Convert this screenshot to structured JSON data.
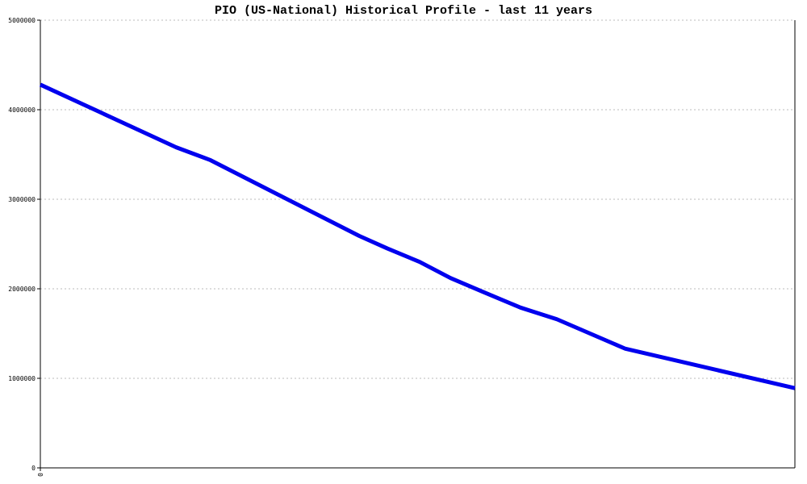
{
  "chart_data": {
    "type": "line",
    "title": "PIO (US-National) Historical Profile - last 11 years",
    "x": [
      0,
      1.98,
      2.47,
      4.65,
      5.06,
      5.53,
      5.98,
      6.47,
      7.0,
      7.53,
      8.53,
      11
    ],
    "series": [
      {
        "name": "PIO",
        "color": "#0000ee",
        "values": [
          4280000,
          3580000,
          3440000,
          2590000,
          2450000,
          2300000,
          2120000,
          1960000,
          1790000,
          1660000,
          1330000,
          890000
        ]
      }
    ],
    "xlim": [
      0,
      11
    ],
    "xticks": [
      0
    ],
    "ylim": [
      0,
      5000000
    ],
    "yticks": [
      0,
      1000000,
      2000000,
      3000000,
      4000000,
      5000000
    ],
    "grid": true
  }
}
